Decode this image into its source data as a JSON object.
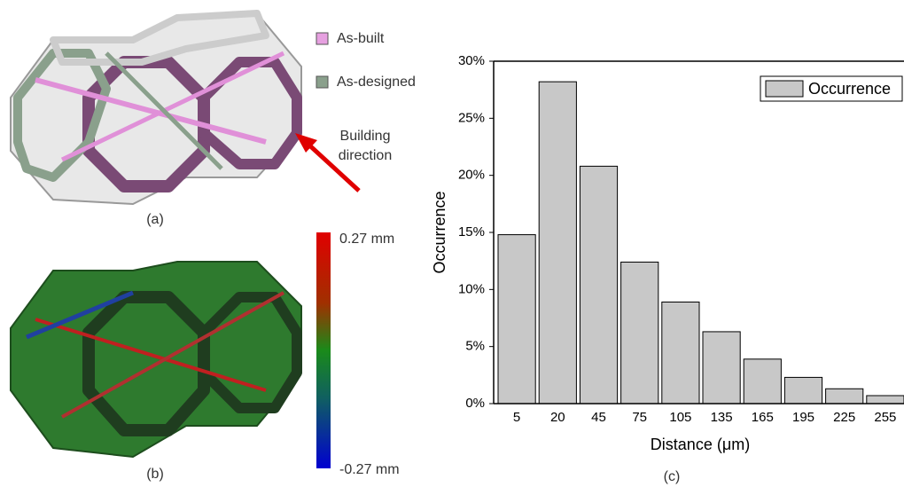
{
  "chart_data": {
    "type": "bar",
    "x_label": "Distance (μm)",
    "y_label": "Occurrence",
    "panel_label": "(c)",
    "categories": [
      "5",
      "20",
      "45",
      "75",
      "105",
      "135",
      "165",
      "195",
      "225",
      "255"
    ],
    "series": [
      {
        "name": "Occurrence",
        "color": "#c8c8c8",
        "values": [
          14.8,
          28.2,
          20.8,
          12.4,
          8.9,
          6.3,
          3.9,
          2.3,
          1.3,
          0.7
        ]
      }
    ],
    "ylim": [
      0,
      30
    ],
    "yticks": [
      {
        "value": 0,
        "label": "0%"
      },
      {
        "value": 5,
        "label": "5%"
      },
      {
        "value": 10,
        "label": "10%"
      },
      {
        "value": 15,
        "label": "15%"
      },
      {
        "value": 20,
        "label": "20%"
      },
      {
        "value": 25,
        "label": "25%"
      },
      {
        "value": 30,
        "label": "30%"
      }
    ],
    "legend": "top-right"
  },
  "figure": {
    "panel_a": {
      "label": "(a)",
      "legend": [
        "As-built",
        "As-designed"
      ],
      "annotation": [
        "Building",
        "direction"
      ]
    },
    "panel_b": {
      "label": "(b)",
      "colorbar_max": "0.27 mm",
      "colorbar_min": "-0.27 mm"
    }
  }
}
